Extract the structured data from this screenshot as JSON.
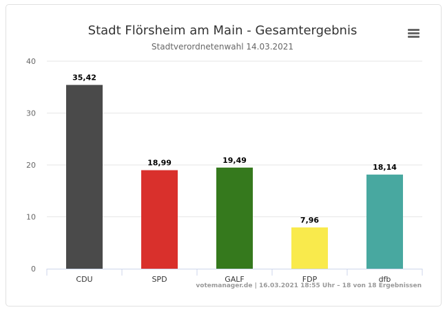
{
  "chart_data": {
    "type": "bar",
    "title": "Stadt Flörsheim am Main - Gesamtergebnis",
    "subtitle": "Stadtverordnetenwahl 14.03.2021",
    "xlabel": "",
    "ylabel": "",
    "categories": [
      "CDU",
      "SPD",
      "GALF",
      "FDP",
      "dfb"
    ],
    "values": [
      35.42,
      18.99,
      19.49,
      7.96,
      18.14
    ],
    "data_labels": [
      "35,42",
      "18,99",
      "19,49",
      "7,96",
      "18,14"
    ],
    "colors": [
      "#4a4a4a",
      "#d9302c",
      "#35791d",
      "#f9ea4c",
      "#48a8a0"
    ],
    "ylim": [
      0,
      40
    ],
    "yticks": [
      0,
      10,
      20,
      30,
      40
    ],
    "grid": true,
    "legend": "none"
  },
  "credits": "votemanager.de | 16.03.2021 18:55 Uhr – 18 von 18 Ergebnissen",
  "menu_icon": "hamburger-menu-icon"
}
